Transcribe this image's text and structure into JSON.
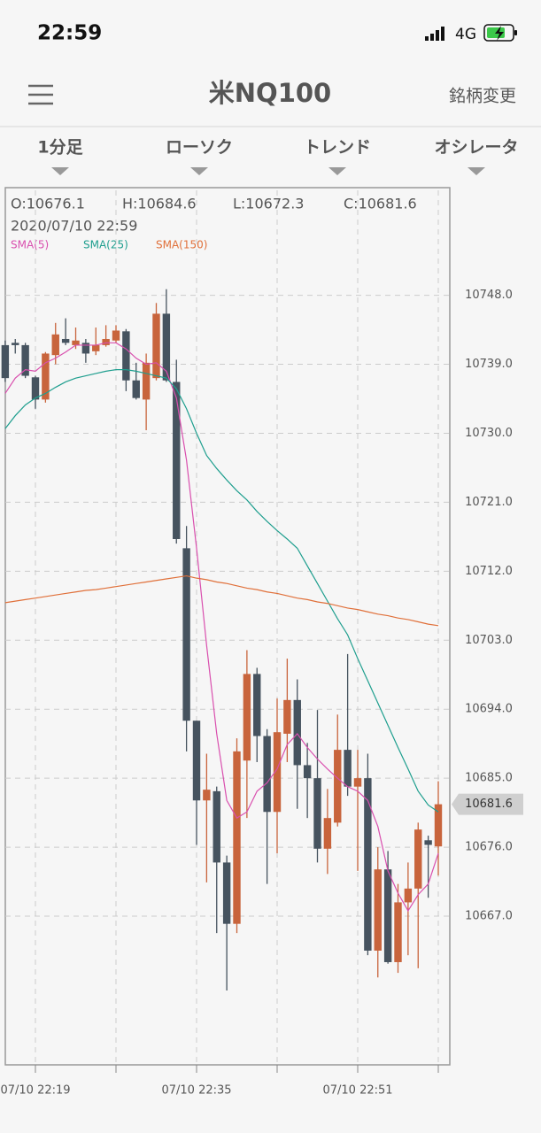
{
  "status_bar": {
    "time": "22:59",
    "network": "4G"
  },
  "header": {
    "title": "米NQ100",
    "action": "銘柄変更"
  },
  "tabs": [
    "1分足",
    "ローソク",
    "トレンド",
    "オシレータ"
  ],
  "chart_data": {
    "type": "candlestick",
    "ohlc_labels": [
      "O:10676.1",
      "H:10684.6",
      "L:10672.3",
      "C:10681.6"
    ],
    "datetime": "2020/07/10 22:59",
    "categories": [
      null,
      null,
      null,
      "07/10 22:19",
      null,
      null,
      null,
      null,
      null,
      null,
      null,
      null,
      null,
      null,
      null,
      null,
      null,
      null,
      null,
      "07/10 22:35",
      null,
      null,
      null,
      null,
      null,
      null,
      null,
      null,
      null,
      null,
      null,
      null,
      null,
      null,
      null,
      "07/10 22:51",
      null,
      null,
      null,
      null,
      null,
      null,
      null,
      null
    ],
    "open": [
      10741.5,
      10741.8,
      10741.5,
      10737.3,
      10734.4,
      10740.2,
      10742.3,
      10741.5,
      10741.8,
      10740.7,
      10741.5,
      10742.1,
      10743.3,
      10736.9,
      10734.4,
      10737.2,
      10745.6,
      10736.7,
      10715.0,
      10692.5,
      10682.1,
      10683.3,
      10674.0,
      10666.0,
      10687.3,
      10698.6,
      10690.5,
      10680.6,
      10690.8,
      10695.2,
      10686.7,
      10685.0,
      10675.8,
      10679.2,
      10688.7,
      10683.9,
      10685.0,
      10662.5,
      10673.1,
      10661.0,
      10668.8,
      10670.6,
      10676.9,
      10676.1
    ],
    "high": [
      10742.1,
      10742.3,
      10741.8,
      10737.5,
      10740.6,
      10744.4,
      10745.0,
      10743.8,
      10742.3,
      10743.8,
      10744.1,
      10744.1,
      10743.6,
      10739.2,
      10740.4,
      10747.0,
      10748.8,
      10739.6,
      10717.9,
      10692.5,
      10688.2,
      10683.9,
      10674.9,
      10690.2,
      10701.7,
      10699.4,
      10691.4,
      10695.4,
      10700.6,
      10697.9,
      10689.6,
      10693.9,
      10683.6,
      10693.3,
      10701.2,
      10688.7,
      10688.2,
      10676.0,
      10675.5,
      10671.2,
      10674.0,
      10679.2,
      10677.5,
      10684.6
    ],
    "low": [
      10736.7,
      10740.4,
      10737.2,
      10733.2,
      10734.0,
      10739.0,
      10741.5,
      10741.0,
      10739.2,
      10740.2,
      10741.3,
      10741.8,
      10735.5,
      10734.4,
      10730.4,
      10736.9,
      10736.7,
      10715.6,
      10688.5,
      10676.3,
      10671.4,
      10664.8,
      10657.3,
      10664.8,
      10679.8,
      10687.1,
      10671.2,
      10675.2,
      10687.1,
      10681.0,
      10679.8,
      10674.0,
      10672.5,
      10678.7,
      10682.7,
      10672.9,
      10661.9,
      10659.0,
      10660.8,
      10659.6,
      10661.9,
      10660.2,
      10669.4,
      10672.3
    ],
    "close": [
      10737.2,
      10741.5,
      10737.5,
      10734.4,
      10740.4,
      10742.9,
      10741.8,
      10742.1,
      10740.4,
      10741.5,
      10742.3,
      10743.4,
      10736.9,
      10734.6,
      10739.2,
      10745.6,
      10736.9,
      10716.2,
      10692.5,
      10682.1,
      10683.5,
      10674.0,
      10666.0,
      10688.5,
      10698.6,
      10690.5,
      10680.6,
      10691.0,
      10695.2,
      10686.7,
      10685.0,
      10675.8,
      10679.8,
      10688.7,
      10683.9,
      10685.0,
      10662.5,
      10673.1,
      10661.0,
      10668.8,
      10670.6,
      10678.3,
      10676.3,
      10681.6
    ],
    "up_color": "#c8643c",
    "down_color": "#46535f",
    "series": [
      {
        "name": "SMA(5)",
        "color": "#d94fae",
        "values": [
          10735.2,
          10737.2,
          10738.3,
          10738.1,
          10739.2,
          10739.8,
          10740.6,
          10741.5,
          10741.5,
          10741.5,
          10741.8,
          10741.8,
          10741.0,
          10739.8,
          10739.0,
          10739.2,
          10738.1,
          10734.6,
          10726.5,
          10715.0,
          10702.3,
          10690.8,
          10682.1,
          10679.8,
          10680.6,
          10683.3,
          10684.4,
          10686.2,
          10689.4,
          10690.8,
          10689.0,
          10687.5,
          10686.2,
          10685.0,
          10683.9,
          10683.3,
          10682.1,
          10678.7,
          10672.9,
          10670.0,
          10667.7,
          10669.8,
          10671.2,
          10675.2
        ]
      },
      {
        "name": "SMA(25)",
        "color": "#1e9e8e",
        "values": [
          10730.6,
          10732.3,
          10733.7,
          10734.6,
          10735.2,
          10736.0,
          10736.7,
          10737.2,
          10737.5,
          10737.8,
          10738.1,
          10738.3,
          10738.3,
          10738.1,
          10737.8,
          10737.5,
          10737.2,
          10735.8,
          10733.2,
          10730.0,
          10727.1,
          10725.4,
          10723.9,
          10722.5,
          10721.3,
          10719.8,
          10718.5,
          10717.3,
          10716.2,
          10715.0,
          10712.7,
          10710.4,
          10708.1,
          10705.8,
          10703.7,
          10700.6,
          10697.7,
          10694.8,
          10691.9,
          10689.0,
          10686.2,
          10683.3,
          10681.5,
          10680.6
        ]
      },
      {
        "name": "SMA(150)",
        "color": "#e0703a",
        "values": [
          10707.9,
          10708.1,
          10708.3,
          10708.5,
          10708.7,
          10708.9,
          10709.1,
          10709.3,
          10709.5,
          10709.6,
          10709.8,
          10710.0,
          10710.2,
          10710.4,
          10710.6,
          10710.8,
          10711.0,
          10711.2,
          10711.4,
          10711.1,
          10710.9,
          10710.6,
          10710.4,
          10710.1,
          10709.8,
          10709.6,
          10709.3,
          10709.1,
          10708.8,
          10708.5,
          10708.3,
          10708.0,
          10707.8,
          10707.5,
          10707.2,
          10707.0,
          10706.7,
          10706.4,
          10706.2,
          10705.9,
          10705.7,
          10705.4,
          10705.1,
          10704.9
        ]
      }
    ],
    "ylim": [
      10647.6,
      10761.7
    ],
    "yticks": [
      {
        "value": 10748,
        "label": "10748.0"
      },
      {
        "value": 10739,
        "label": "10739.0"
      },
      {
        "value": 10730,
        "label": "10730.0"
      },
      {
        "value": 10721,
        "label": "10721.0"
      },
      {
        "value": 10712,
        "label": "10712.0"
      },
      {
        "value": 10703,
        "label": "10703.0"
      },
      {
        "value": 10694,
        "label": "10694.0"
      },
      {
        "value": 10685,
        "label": "10685.0"
      },
      {
        "value": 10676,
        "label": "10676.0"
      },
      {
        "value": 10667,
        "label": "10667.0"
      }
    ],
    "last_price": 10681.6,
    "grid": true
  }
}
